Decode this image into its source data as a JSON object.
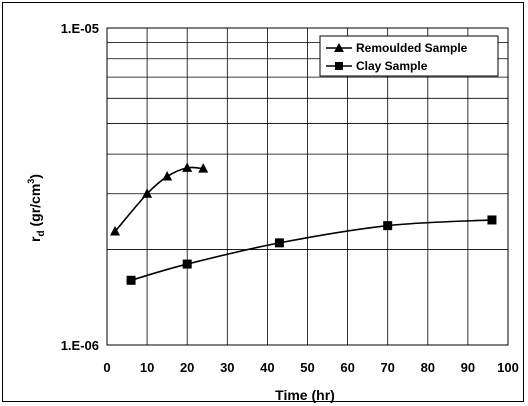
{
  "chart_data": {
    "type": "line",
    "title": "",
    "xlabel": "Time (hr)",
    "ylabel_main": "r",
    "ylabel_sub": "d",
    "ylabel_unit": " (gr/cm",
    "ylabel_sup": "3",
    "ylabel_close": ")",
    "xlim": [
      0,
      100
    ],
    "ylim": [
      1e-06,
      1e-05
    ],
    "yscale": "log",
    "x_ticks": [
      "0",
      "10",
      "20",
      "30",
      "40",
      "50",
      "60",
      "70",
      "80",
      "90",
      "100"
    ],
    "y_ticks": [
      "1.E-06",
      "1.E-05"
    ],
    "grid": true,
    "legend_position": "top-right",
    "series": [
      {
        "name": "Remoulded Sample",
        "marker": "triangle",
        "x": [
          2,
          10,
          15,
          20,
          24
        ],
        "y": [
          2.28e-06,
          3e-06,
          3.4e-06,
          3.62e-06,
          3.6e-06
        ]
      },
      {
        "name": "Clay Sample",
        "marker": "square",
        "x": [
          6,
          20,
          43,
          70,
          96
        ],
        "y": [
          1.6e-06,
          1.8e-06,
          2.1e-06,
          2.38e-06,
          2.48e-06
        ]
      }
    ],
    "colors": {
      "line": "#000000",
      "grid": "#000000",
      "background": "#ffffff"
    }
  }
}
